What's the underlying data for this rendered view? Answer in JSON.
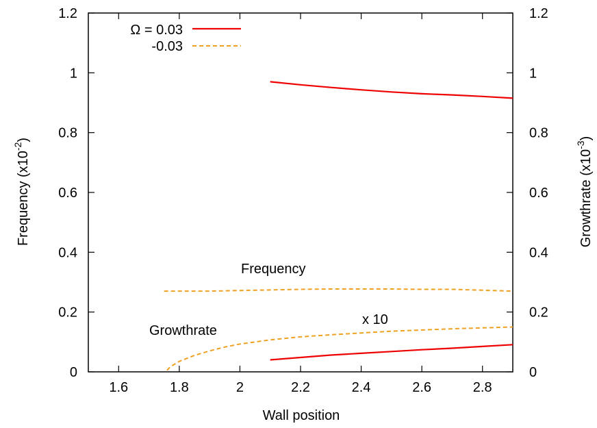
{
  "chart_data": {
    "type": "line",
    "xlabel": "Wall position",
    "ylabel": "Frequency (x10",
    "ylabel_exp": "-2",
    "ylabel_close": ")",
    "y2label": "Growthrate (x10",
    "y2label_exp": "-3",
    "y2label_close": ")",
    "xlim": [
      1.5,
      2.9
    ],
    "ylim": [
      0,
      1.2
    ],
    "y2lim": [
      0,
      1.2
    ],
    "grid": false,
    "legend_placement": "top-left",
    "x_ticks": [
      "1.6",
      "1.8",
      "2",
      "2.2",
      "2.4",
      "2.6",
      "2.8"
    ],
    "y_ticks": [
      "0",
      "0.2",
      "0.4",
      "0.6",
      "0.8",
      "1",
      "1.2"
    ],
    "y2_ticks": [
      "0",
      "0.2",
      "0.4",
      "0.6",
      "0.8",
      "1",
      "1.2"
    ],
    "legend": [
      {
        "label": "Ω = 0.03",
        "color": "#ee0000",
        "dash": "solid"
      },
      {
        "label": "-0.03",
        "color": "#f0a020",
        "dash": "dashed"
      }
    ],
    "annotations": {
      "frequency": "Frequency",
      "growthrate": "Growthrate",
      "times10": "x 10"
    },
    "series": [
      {
        "name": "Ω = 0.03",
        "quantity": "Frequency",
        "color": "#ee0000",
        "dash": "solid",
        "x": [
          2.1,
          2.2,
          2.3,
          2.4,
          2.5,
          2.6,
          2.7,
          2.8,
          2.9
        ],
        "y": [
          0.97,
          0.96,
          0.951,
          0.943,
          0.936,
          0.93,
          0.926,
          0.921,
          0.915
        ]
      },
      {
        "name": "Ω = 0.03",
        "quantity": "Growthrate",
        "color": "#ee0000",
        "dash": "solid",
        "x": [
          2.1,
          2.2,
          2.3,
          2.4,
          2.5,
          2.6,
          2.7,
          2.8,
          2.9
        ],
        "y": [
          0.04,
          0.048,
          0.056,
          0.062,
          0.068,
          0.074,
          0.079,
          0.085,
          0.091
        ]
      },
      {
        "name": "-0.03",
        "quantity": "Frequency",
        "color": "#f0a020",
        "dash": "dashed",
        "x": [
          1.75,
          1.9,
          2.0,
          2.1,
          2.2,
          2.3,
          2.4,
          2.5,
          2.6,
          2.7,
          2.8,
          2.9
        ],
        "y": [
          0.27,
          0.27,
          0.272,
          0.274,
          0.276,
          0.277,
          0.277,
          0.277,
          0.276,
          0.276,
          0.273,
          0.27
        ]
      },
      {
        "name": "-0.03",
        "quantity": "Growthrate x 10",
        "color": "#f0a020",
        "dash": "dashed",
        "x": [
          1.76,
          1.77,
          1.8,
          1.85,
          1.9,
          1.95,
          2.0,
          2.1,
          2.2,
          2.3,
          2.4,
          2.5,
          2.6,
          2.7,
          2.8,
          2.9
        ],
        "y": [
          0.005,
          0.017,
          0.035,
          0.055,
          0.07,
          0.083,
          0.093,
          0.107,
          0.117,
          0.124,
          0.13,
          0.136,
          0.14,
          0.144,
          0.147,
          0.15
        ]
      }
    ]
  }
}
